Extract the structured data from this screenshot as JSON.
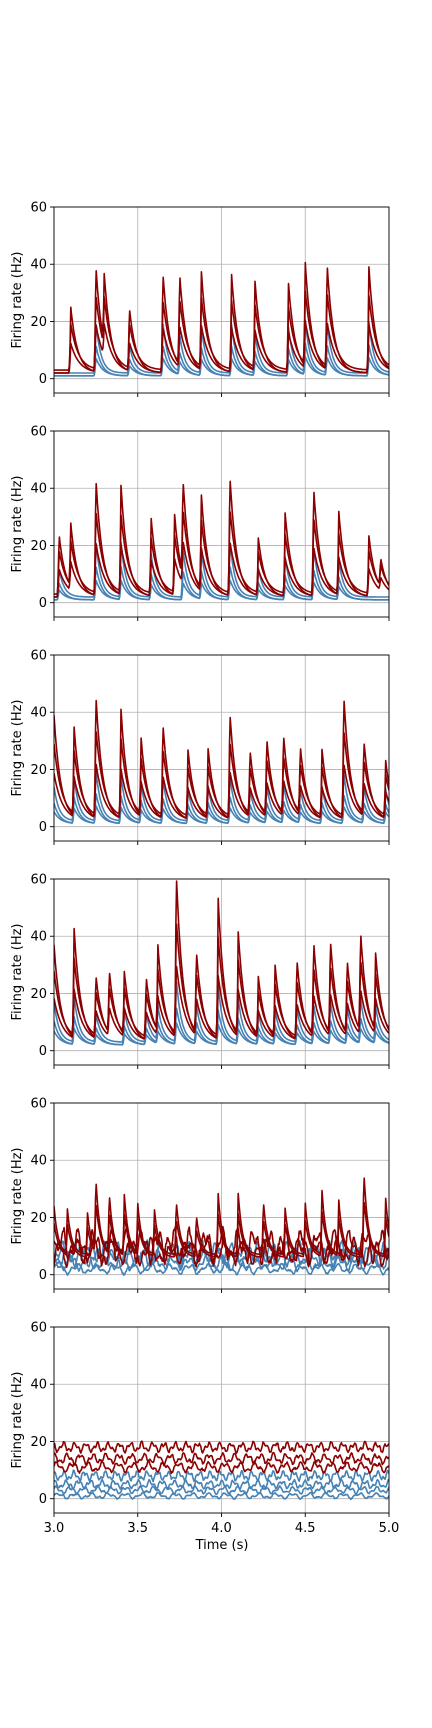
{
  "chart_data": {
    "type": "line",
    "shared": {
      "xlabel": "Time (s)",
      "ylabel": "Firing rate (Hz)",
      "xlim": [
        3.0,
        5.0
      ],
      "ylim": [
        -5,
        60
      ],
      "x_ticks": [
        3.0,
        3.5,
        4.0,
        4.5,
        5.0
      ],
      "x_tick_labels": [
        "3.0",
        "3.5",
        "4.0",
        "4.5",
        "5.0"
      ],
      "y_ticks": [
        0,
        20,
        40,
        60
      ],
      "y_tick_labels": [
        "0",
        "20",
        "40",
        "60"
      ],
      "grid": true,
      "colors": {
        "excitatory": "#8b0000",
        "inhibitory": "#4682b4"
      }
    },
    "panels": [
      {
        "kind": "burst",
        "red_peaks": [
          [
            3.1,
            23
          ],
          [
            3.25,
            37
          ],
          [
            3.3,
            24
          ],
          [
            3.45,
            22
          ],
          [
            3.65,
            35
          ],
          [
            3.75,
            32
          ],
          [
            3.88,
            34
          ],
          [
            4.06,
            34
          ],
          [
            4.2,
            31
          ],
          [
            4.4,
            31
          ],
          [
            4.5,
            36
          ],
          [
            4.63,
            37
          ],
          [
            4.88,
            37
          ]
        ],
        "blue_peaks": [
          [
            3.25,
            18
          ],
          [
            3.45,
            10
          ],
          [
            3.65,
            18
          ],
          [
            3.75,
            13
          ],
          [
            3.88,
            16
          ],
          [
            4.06,
            17
          ],
          [
            4.2,
            14
          ],
          [
            4.4,
            16
          ],
          [
            4.5,
            18
          ],
          [
            4.63,
            18
          ],
          [
            4.88,
            18
          ]
        ],
        "baseline": [
          2,
          1
        ]
      },
      {
        "kind": "burst",
        "red_peaks": [
          [
            3.03,
            22
          ],
          [
            3.1,
            22
          ],
          [
            3.25,
            41
          ],
          [
            3.4,
            38
          ],
          [
            3.58,
            27
          ],
          [
            3.72,
            28
          ],
          [
            3.77,
            33
          ],
          [
            3.88,
            33
          ],
          [
            4.05,
            42
          ],
          [
            4.22,
            20
          ],
          [
            4.38,
            29
          ],
          [
            4.55,
            38
          ],
          [
            4.7,
            29
          ],
          [
            4.88,
            21
          ],
          [
            4.95,
            10
          ]
        ],
        "blue_peaks": [
          [
            3.03,
            10
          ],
          [
            3.25,
            20
          ],
          [
            3.4,
            19
          ],
          [
            3.58,
            15
          ],
          [
            3.77,
            17
          ],
          [
            3.88,
            16
          ],
          [
            4.05,
            20
          ],
          [
            4.22,
            10
          ],
          [
            4.38,
            14
          ],
          [
            4.55,
            18
          ],
          [
            4.7,
            13
          ]
        ],
        "baseline": [
          2,
          1
        ]
      },
      {
        "kind": "burst",
        "red_peaks": [
          [
            3.0,
            37
          ],
          [
            3.12,
            31
          ],
          [
            3.25,
            43
          ],
          [
            3.4,
            38
          ],
          [
            3.52,
            27
          ],
          [
            3.65,
            33
          ],
          [
            3.8,
            24
          ],
          [
            3.92,
            24
          ],
          [
            4.05,
            37
          ],
          [
            4.17,
            23
          ],
          [
            4.27,
            27
          ],
          [
            4.37,
            28
          ],
          [
            4.47,
            24
          ],
          [
            4.6,
            24
          ],
          [
            4.73,
            43
          ],
          [
            4.85,
            26
          ],
          [
            4.98,
            20
          ]
        ],
        "blue_peaks": [
          [
            3.0,
            12
          ],
          [
            3.12,
            15
          ],
          [
            3.25,
            18
          ],
          [
            3.4,
            16
          ],
          [
            3.52,
            13
          ],
          [
            3.65,
            15
          ],
          [
            3.8,
            11
          ],
          [
            3.92,
            12
          ],
          [
            4.05,
            16
          ],
          [
            4.17,
            11
          ],
          [
            4.27,
            12
          ],
          [
            4.37,
            13
          ],
          [
            4.47,
            11
          ],
          [
            4.6,
            12
          ],
          [
            4.73,
            17
          ],
          [
            4.85,
            12
          ],
          [
            4.98,
            11
          ]
        ],
        "baseline": [
          2,
          1
        ]
      },
      {
        "kind": "burst",
        "red_peaks": [
          [
            3.0,
            34
          ],
          [
            3.12,
            38
          ],
          [
            3.25,
            22
          ],
          [
            3.33,
            22
          ],
          [
            3.42,
            22
          ],
          [
            3.55,
            22
          ],
          [
            3.62,
            30
          ],
          [
            3.73,
            57
          ],
          [
            3.85,
            29
          ],
          [
            3.98,
            49
          ],
          [
            4.1,
            36
          ],
          [
            4.22,
            21
          ],
          [
            4.32,
            25
          ],
          [
            4.45,
            28
          ],
          [
            4.55,
            33
          ],
          [
            4.65,
            33
          ],
          [
            4.75,
            26
          ],
          [
            4.83,
            35
          ],
          [
            4.92,
            27
          ]
        ],
        "blue_peaks": [
          [
            3.0,
            14
          ],
          [
            3.12,
            16
          ],
          [
            3.25,
            10
          ],
          [
            3.42,
            11
          ],
          [
            3.55,
            10
          ],
          [
            3.62,
            12
          ],
          [
            3.73,
            22
          ],
          [
            3.85,
            13
          ],
          [
            3.98,
            20
          ],
          [
            4.1,
            15
          ],
          [
            4.22,
            10
          ],
          [
            4.32,
            11
          ],
          [
            4.45,
            12
          ],
          [
            4.55,
            13
          ],
          [
            4.65,
            14
          ],
          [
            4.75,
            12
          ],
          [
            4.83,
            15
          ],
          [
            4.92,
            12
          ]
        ],
        "baseline": [
          3,
          2
        ]
      },
      {
        "kind": "noisy",
        "red_levels": [
          8,
          10
        ],
        "red_peaks": [
          [
            3.0,
            20
          ],
          [
            3.08,
            18
          ],
          [
            3.2,
            17
          ],
          [
            3.25,
            29
          ],
          [
            3.33,
            24
          ],
          [
            3.42,
            24
          ],
          [
            3.5,
            20
          ],
          [
            3.6,
            18
          ],
          [
            3.73,
            22
          ],
          [
            3.85,
            16
          ],
          [
            3.98,
            25
          ],
          [
            4.1,
            25
          ],
          [
            4.25,
            22
          ],
          [
            4.38,
            19
          ],
          [
            4.5,
            21
          ],
          [
            4.6,
            26
          ],
          [
            4.7,
            22
          ],
          [
            4.85,
            34
          ],
          [
            4.98,
            23
          ]
        ],
        "blue_levels": [
          2,
          4,
          6,
          8
        ]
      },
      {
        "kind": "flat",
        "red_levels": [
          11,
          14,
          18
        ],
        "blue_levels": [
          1,
          3,
          5,
          8
        ]
      }
    ]
  }
}
